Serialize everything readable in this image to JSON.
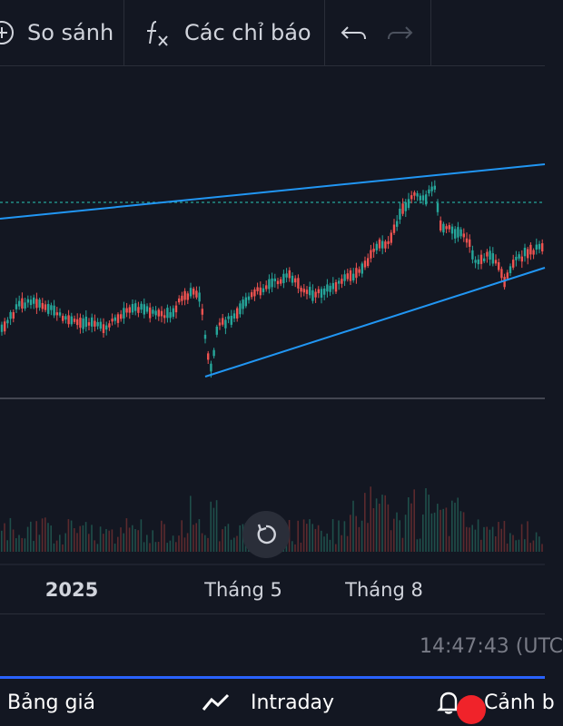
{
  "toolbar": {
    "compare_label": "So sánh",
    "indicators_label": "Các chỉ báo"
  },
  "time_axis": {
    "labels": [
      "2025",
      "Tháng 5",
      "Tháng 8"
    ]
  },
  "clock": "14:47:43 (UTC",
  "bottom_nav": {
    "price_board_label": "Bảng giá",
    "intraday_label": "Intraday",
    "alerts_label": "Cảnh b"
  },
  "colors": {
    "background": "#131722",
    "up": "#26a69a",
    "down": "#ef5350",
    "trendline": "#2196f3",
    "accent": "#2962ff"
  },
  "chart_data": {
    "type": "candlestick",
    "title": "",
    "x_labels": [
      "2025",
      "Tháng 5",
      "Tháng 8"
    ],
    "trendlines": 2,
    "horizontal_level": "dashed teal level near recent high"
  }
}
